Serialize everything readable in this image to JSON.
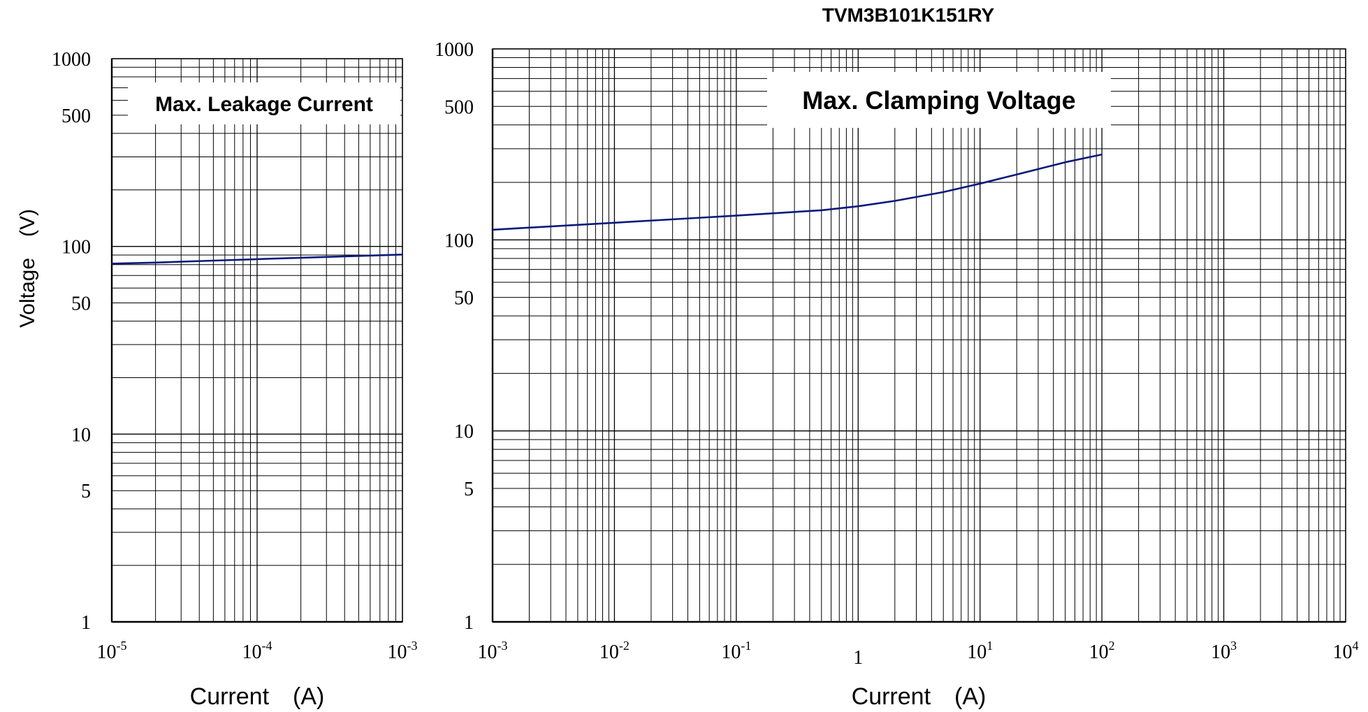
{
  "page": {
    "title": "TVM3B101K151RY",
    "ylabel": "Voltage　(V)"
  },
  "chart_data": [
    {
      "type": "line",
      "title": "Max. Leakage Current",
      "xlabel": "Current　(A)",
      "ylabel": "Voltage　(V)",
      "xscale": "log",
      "yscale": "log",
      "xlim": [
        1e-05,
        0.001
      ],
      "ylim": [
        1,
        1000
      ],
      "grid": true,
      "legend": "none",
      "x_ticks": [
        {
          "base": "10",
          "exp": "-5",
          "value": 1e-05
        },
        {
          "base": "10",
          "exp": "-4",
          "value": 0.0001
        },
        {
          "base": "10",
          "exp": "-3",
          "value": 0.001
        }
      ],
      "y_ticks": [
        {
          "label": "1000",
          "value": 1000
        },
        {
          "label": "500",
          "value": 500
        },
        {
          "label": "100",
          "value": 100
        },
        {
          "label": "50",
          "value": 50
        },
        {
          "label": "10",
          "value": 10
        },
        {
          "label": "5",
          "value": 5
        },
        {
          "label": "1",
          "value": 1
        }
      ],
      "line_color": "#0a1a7a",
      "series": [
        {
          "x": [
            1e-05,
            2e-05,
            5e-05,
            0.0001,
            0.0002,
            0.0005,
            0.001
          ],
          "y": [
            81,
            82,
            84,
            85.5,
            87,
            89,
            90.5
          ]
        }
      ]
    },
    {
      "type": "line",
      "title": "Max. Clamping Voltage",
      "xlabel": "Current　(A)",
      "xscale": "log",
      "yscale": "log",
      "xlim": [
        0.001,
        10000
      ],
      "ylim": [
        1,
        1000
      ],
      "grid": true,
      "legend": "none",
      "x_ticks": [
        {
          "base": "10",
          "exp": "-3",
          "value": 0.001
        },
        {
          "base": "10",
          "exp": "-2",
          "value": 0.01
        },
        {
          "base": "10",
          "exp": "-1",
          "value": 0.1
        },
        {
          "base": "1",
          "exp": "",
          "value": 1
        },
        {
          "base": "10",
          "exp": "1",
          "value": 10
        },
        {
          "base": "10",
          "exp": "2",
          "value": 100
        },
        {
          "base": "10",
          "exp": "3",
          "value": 1000
        },
        {
          "base": "10",
          "exp": "4",
          "value": 10000
        }
      ],
      "y_ticks": [
        {
          "label": "1000",
          "value": 1000
        },
        {
          "label": "500",
          "value": 500
        },
        {
          "label": "100",
          "value": 100
        },
        {
          "label": "50",
          "value": 50
        },
        {
          "label": "10",
          "value": 10
        },
        {
          "label": "5",
          "value": 5
        },
        {
          "label": "1",
          "value": 1
        }
      ],
      "line_color": "#0a1a7a",
      "series": [
        {
          "x": [
            0.001,
            0.01,
            0.1,
            0.5,
            1,
            2,
            5,
            10,
            20,
            50,
            100
          ],
          "y": [
            113,
            123,
            134,
            143,
            150,
            160,
            178,
            197,
            220,
            255,
            280
          ]
        }
      ]
    }
  ]
}
